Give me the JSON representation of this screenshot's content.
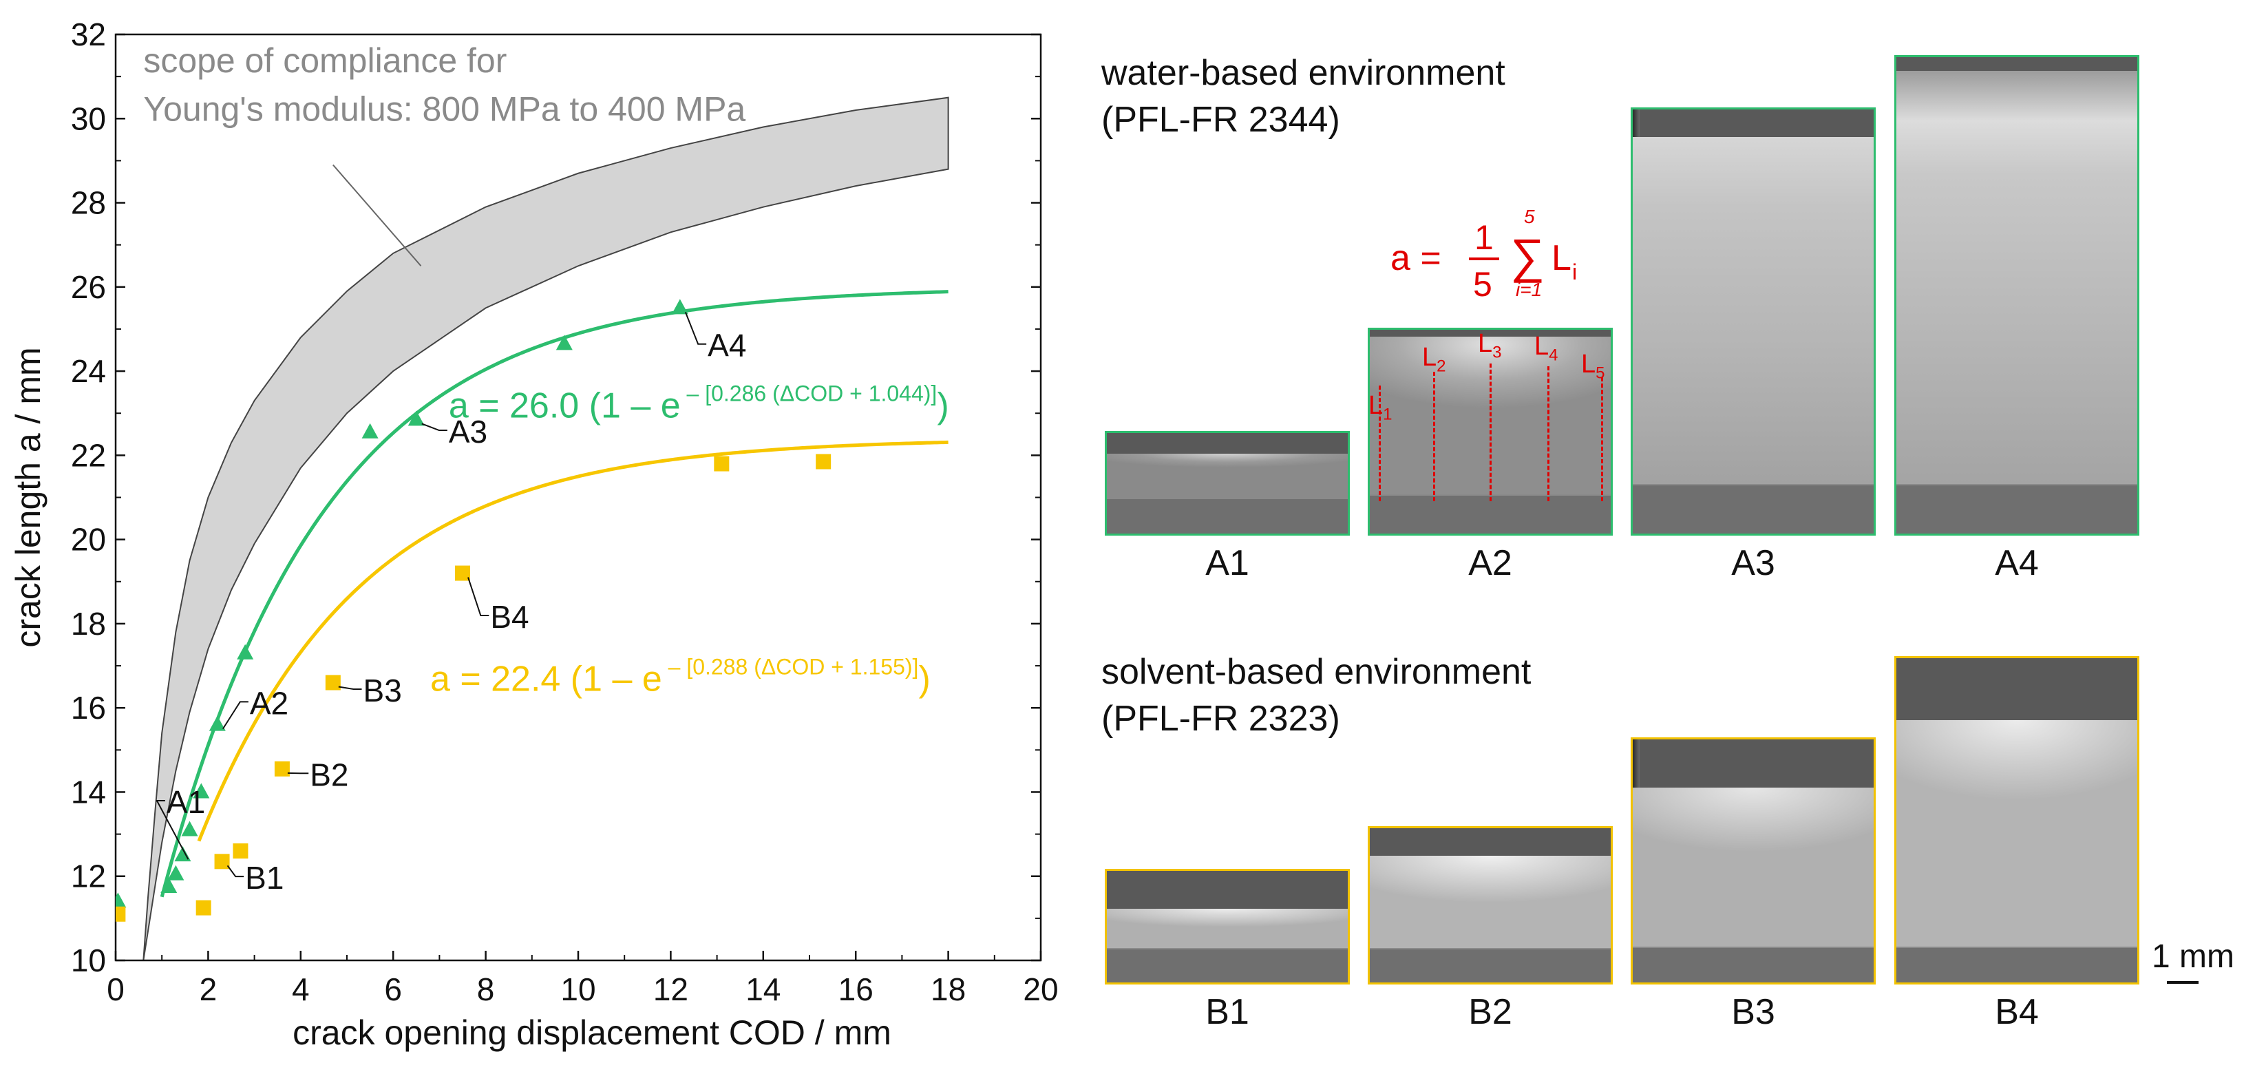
{
  "chart_data": {
    "type": "scatter",
    "xlabel": "crack opening displacement  COD  /  mm",
    "ylabel": "crack length  a  /  mm",
    "xlim": [
      0,
      20
    ],
    "ylim": [
      10,
      32
    ],
    "xticks": [
      "0",
      "2",
      "4",
      "6",
      "8",
      "10",
      "12",
      "14",
      "16",
      "18",
      "20"
    ],
    "yticks": [
      "10",
      "12",
      "14",
      "16",
      "18",
      "20",
      "22",
      "24",
      "26",
      "28",
      "30",
      "32"
    ],
    "band_label": [
      "scope of compliance for",
      "Young's modulus: 800 MPa to 400 MPa"
    ],
    "band": {
      "upper": {
        "x": [
          0.6,
          0.7,
          0.85,
          1.0,
          1.3,
          1.6,
          2.0,
          2.5,
          3,
          4,
          5,
          6,
          8,
          10,
          12,
          14,
          16,
          18
        ],
        "y": [
          10,
          11.5,
          13.5,
          15.4,
          17.8,
          19.5,
          21.0,
          22.3,
          23.3,
          24.8,
          25.9,
          26.8,
          27.9,
          28.7,
          29.3,
          29.8,
          30.2,
          30.5
        ]
      },
      "lower": {
        "x": [
          0.6,
          0.8,
          1.0,
          1.3,
          1.6,
          2.0,
          2.5,
          3,
          4,
          5,
          6,
          8,
          10,
          12,
          14,
          16,
          18
        ],
        "y": [
          10,
          11.4,
          12.8,
          14.5,
          15.9,
          17.4,
          18.8,
          19.9,
          21.7,
          23.0,
          24.0,
          25.5,
          26.5,
          27.3,
          27.9,
          28.4,
          28.8
        ]
      }
    },
    "series": [
      {
        "name": "water-based environment (PFL-FR 2344)",
        "color": "#2dbd6e",
        "marker": "triangle",
        "points": [
          [
            0.05,
            11.4
          ],
          [
            1.15,
            11.75
          ],
          [
            1.3,
            12.05
          ],
          [
            1.45,
            12.5
          ],
          [
            1.6,
            13.1
          ],
          [
            1.85,
            14.0
          ],
          [
            2.2,
            15.6
          ],
          [
            2.8,
            17.3
          ],
          [
            5.5,
            22.55
          ],
          [
            6.5,
            22.85
          ],
          [
            9.7,
            24.65
          ],
          [
            12.2,
            25.5
          ]
        ],
        "fit": {
          "A": 26.0,
          "k": 0.286,
          "c": 1.044,
          "x0": 1.0,
          "x1": 18
        },
        "equation": "a = 26.0 (1 – e",
        "exponent": "– [0.286 (ΔCOD + 1.044)]",
        "equation_close": ")"
      },
      {
        "name": "solvent-based environment (PFL-FR 2323)",
        "color": "#f7c600",
        "marker": "square",
        "points": [
          [
            0.05,
            11.1
          ],
          [
            1.9,
            11.25
          ],
          [
            2.3,
            12.35
          ],
          [
            2.7,
            12.6
          ],
          [
            3.6,
            14.55
          ],
          [
            4.7,
            16.6
          ],
          [
            7.5,
            19.2
          ],
          [
            13.1,
            21.8
          ],
          [
            15.3,
            21.85
          ]
        ],
        "fit": {
          "A": 22.4,
          "k": 0.288,
          "c": 1.155,
          "x0": 1.8,
          "x1": 18
        },
        "equation": "a = 22.4 (1 – e",
        "exponent": "– [0.288 (ΔCOD + 1.155)]",
        "equation_close": ")"
      }
    ],
    "point_labels": [
      {
        "text": "A1",
        "series": 0,
        "point": 3
      },
      {
        "text": "A2",
        "series": 0,
        "point": 6
      },
      {
        "text": "A3",
        "series": 0,
        "point": 9
      },
      {
        "text": "A4",
        "series": 0,
        "point": 11
      },
      {
        "text": "B1",
        "series": 1,
        "point": 2
      },
      {
        "text": "B2",
        "series": 1,
        "point": 4
      },
      {
        "text": "B3",
        "series": 1,
        "point": 5
      },
      {
        "text": "B4",
        "series": 1,
        "point": 6
      }
    ]
  },
  "panels": {
    "water": {
      "title": [
        "water-based environment",
        "(PFL-FR 2344)"
      ],
      "labels": [
        "A1",
        "A2",
        "A3",
        "A4"
      ]
    },
    "solvent": {
      "title": [
        "solvent-based environment",
        "(PFL-FR 2323)"
      ],
      "labels": [
        "B1",
        "B2",
        "B3",
        "B4"
      ]
    }
  },
  "formula": {
    "lhs": "a =",
    "num": "1",
    "den": "5",
    "sum_top": "5",
    "sum_bottom": "i=1",
    "term": "L",
    "term_sub": "i"
  },
  "l_markers": [
    {
      "label": "L",
      "sub": "1"
    },
    {
      "label": "L",
      "sub": "2"
    },
    {
      "label": "L",
      "sub": "3"
    },
    {
      "label": "L",
      "sub": "4"
    },
    {
      "label": "L",
      "sub": "5"
    }
  ],
  "scale_bar": "1 mm",
  "colors": {
    "water": "#2dbd6e",
    "solvent": "#f7c600",
    "band": "#d4d4d4",
    "formula": "#e00000"
  }
}
